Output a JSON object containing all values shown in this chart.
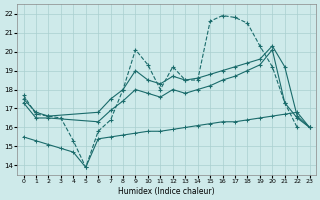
{
  "xlabel": "Humidex (Indice chaleur)",
  "xlim": [
    -0.5,
    23.5
  ],
  "ylim": [
    13.5,
    22.5
  ],
  "xticks": [
    0,
    1,
    2,
    3,
    4,
    5,
    6,
    7,
    8,
    9,
    10,
    11,
    12,
    13,
    14,
    15,
    16,
    17,
    18,
    19,
    20,
    21,
    22,
    23
  ],
  "yticks": [
    14,
    15,
    16,
    17,
    18,
    19,
    20,
    21,
    22
  ],
  "bg_color": "#ceeaea",
  "grid_color": "#aacfcf",
  "line_color": "#1a6b6b",
  "line1_x": [
    0,
    1,
    2,
    3,
    4,
    5,
    6,
    7,
    8,
    9,
    10,
    11,
    12,
    13,
    14,
    15,
    16,
    17,
    18,
    19,
    20,
    21,
    22
  ],
  "line1_y": [
    17.7,
    16.7,
    16.6,
    16.5,
    15.3,
    13.9,
    15.8,
    16.4,
    18.0,
    20.1,
    19.3,
    18.0,
    19.2,
    18.5,
    18.5,
    21.6,
    21.9,
    21.8,
    21.5,
    20.3,
    19.2,
    17.3,
    16.0
  ],
  "line2_x": [
    0,
    1,
    2,
    6,
    7,
    8,
    9,
    10,
    11,
    12,
    13,
    14,
    15,
    16,
    17,
    18,
    19,
    20,
    21,
    22,
    23
  ],
  "line2_y": [
    17.5,
    16.8,
    16.6,
    16.8,
    17.5,
    18.0,
    19.0,
    18.5,
    18.3,
    18.7,
    18.5,
    18.6,
    18.8,
    19.0,
    19.2,
    19.4,
    19.6,
    20.3,
    19.2,
    16.6,
    16.0
  ],
  "line3_x": [
    0,
    1,
    2,
    6,
    7,
    8,
    9,
    10,
    11,
    12,
    13,
    14,
    15,
    16,
    17,
    18,
    19,
    20,
    21,
    22,
    23
  ],
  "line3_y": [
    17.3,
    16.5,
    16.5,
    16.3,
    16.9,
    17.4,
    18.0,
    17.8,
    17.6,
    18.0,
    17.8,
    18.0,
    18.2,
    18.5,
    18.7,
    19.0,
    19.3,
    20.1,
    17.3,
    16.5,
    16.0
  ],
  "line4_x": [
    0,
    1,
    2,
    3,
    4,
    5,
    6,
    7,
    8,
    9,
    10,
    11,
    12,
    13,
    14,
    15,
    16,
    17,
    18,
    19,
    20,
    21,
    22,
    23
  ],
  "line4_y": [
    15.5,
    15.3,
    15.1,
    14.9,
    14.7,
    13.9,
    15.4,
    15.5,
    15.6,
    15.7,
    15.8,
    15.8,
    15.9,
    16.0,
    16.1,
    16.2,
    16.3,
    16.3,
    16.4,
    16.5,
    16.6,
    16.7,
    16.8,
    16.0
  ]
}
